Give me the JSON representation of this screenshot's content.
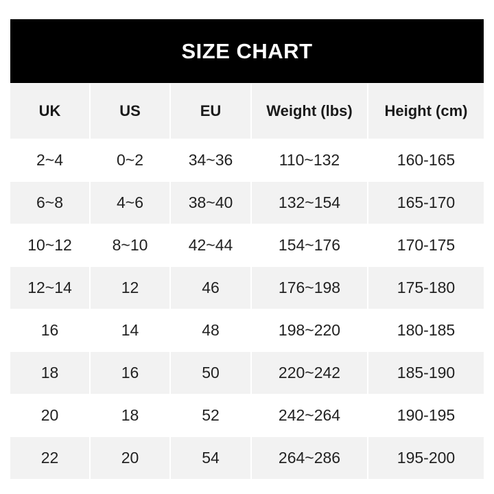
{
  "title": "SIZE CHART",
  "columns": [
    "UK",
    "US",
    "EU",
    "Weight (lbs)",
    "Height (cm)"
  ],
  "rows": [
    [
      "2~4",
      "0~2",
      "34~36",
      "110~132",
      "160-165"
    ],
    [
      "6~8",
      "4~6",
      "38~40",
      "132~154",
      "165-170"
    ],
    [
      "10~12",
      "8~10",
      "42~44",
      "154~176",
      "170-175"
    ],
    [
      "12~14",
      "12",
      "46",
      "176~198",
      "175-180"
    ],
    [
      "16",
      "14",
      "48",
      "198~220",
      "180-185"
    ],
    [
      "18",
      "16",
      "50",
      "220~242",
      "185-190"
    ],
    [
      "20",
      "18",
      "52",
      "242~264",
      "190-195"
    ],
    [
      "22",
      "20",
      "54",
      "264~286",
      "195-200"
    ]
  ],
  "colors": {
    "title_bg": "#000000",
    "title_text": "#ffffff",
    "stripe": "#f2f2f2"
  }
}
